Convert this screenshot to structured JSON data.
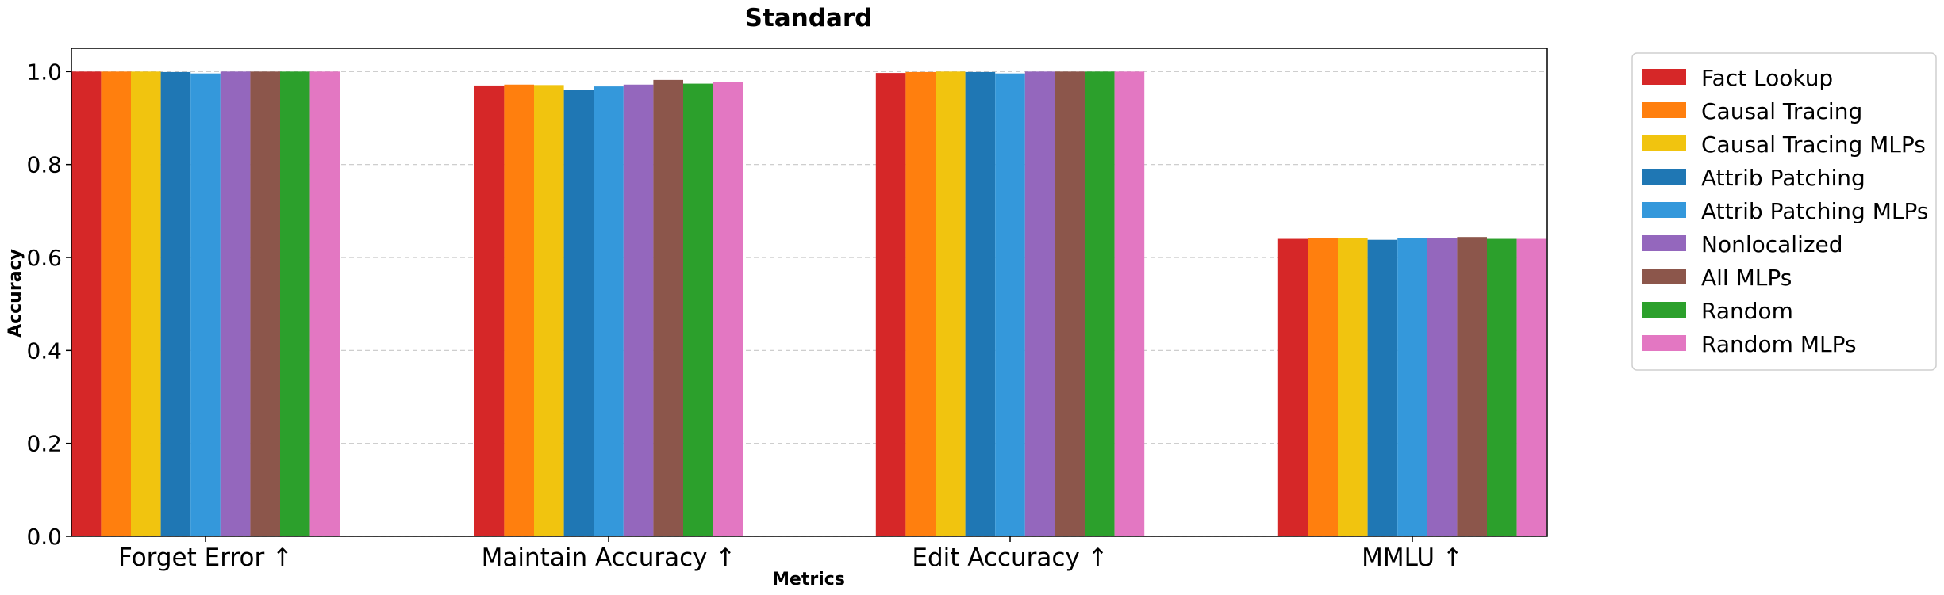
{
  "chart_data": {
    "type": "bar",
    "title": "Standard",
    "xlabel": "Metrics",
    "ylabel": "Accuracy",
    "ylim": [
      0,
      1.05
    ],
    "yticks": [
      "0.0",
      "0.2",
      "0.4",
      "0.6",
      "0.8",
      "1.0"
    ],
    "grid": "horizontal dashed",
    "legend_position": "outside right, top",
    "categories": [
      "Forget Error ↑",
      "Maintain Accuracy ↑",
      "Edit Accuracy ↑",
      "MMLU ↑"
    ],
    "series": [
      {
        "name": "Fact Lookup",
        "color": "#d62728",
        "values": [
          1.0,
          0.97,
          0.997,
          0.64
        ]
      },
      {
        "name": "Causal Tracing",
        "color": "#ff7f0e",
        "values": [
          1.0,
          0.972,
          0.999,
          0.642
        ]
      },
      {
        "name": "Causal Tracing MLPs",
        "color": "#f1c40f",
        "values": [
          1.0,
          0.971,
          1.0,
          0.642
        ]
      },
      {
        "name": "Attrib Patching",
        "color": "#1f77b4",
        "values": [
          0.999,
          0.96,
          0.999,
          0.638
        ]
      },
      {
        "name": "Attrib Patching MLPs",
        "color": "#3498db",
        "values": [
          0.996,
          0.968,
          0.996,
          0.642
        ]
      },
      {
        "name": "Nonlocalized",
        "color": "#9467bd",
        "values": [
          1.0,
          0.972,
          1.0,
          0.642
        ]
      },
      {
        "name": "All MLPs",
        "color": "#8c564b",
        "values": [
          1.0,
          0.982,
          1.0,
          0.644
        ]
      },
      {
        "name": "Random",
        "color": "#2ca02c",
        "values": [
          1.0,
          0.974,
          1.0,
          0.64
        ]
      },
      {
        "name": "Random MLPs",
        "color": "#e377c2",
        "values": [
          1.0,
          0.977,
          1.0,
          0.64
        ]
      }
    ]
  }
}
